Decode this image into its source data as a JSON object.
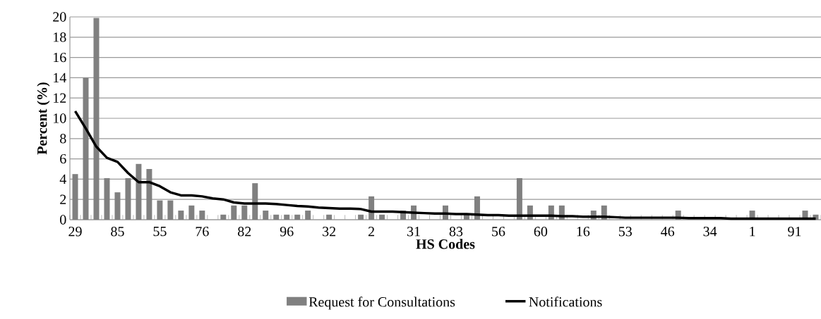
{
  "chart_data": {
    "type": "bar",
    "xlabel": "HS Codes",
    "ylabel": "Percent (%)",
    "categories": [
      "29",
      null,
      null,
      null,
      "85",
      null,
      null,
      null,
      "55",
      null,
      null,
      null,
      "76",
      null,
      null,
      null,
      "82",
      null,
      null,
      null,
      "96",
      null,
      null,
      null,
      "32",
      null,
      null,
      null,
      "2",
      null,
      null,
      null,
      "31",
      null,
      null,
      null,
      "83",
      null,
      null,
      null,
      "56",
      null,
      null,
      null,
      "60",
      null,
      null,
      null,
      "16",
      null,
      null,
      null,
      "53",
      null,
      null,
      null,
      "46",
      null,
      null,
      null,
      "34",
      null,
      null,
      null,
      "1",
      null,
      null,
      null,
      "91",
      null,
      null
    ],
    "series": [
      {
        "name": "Request for Consultations",
        "color": "#808080",
        "values": [
          4.5,
          14.0,
          19.9,
          4.1,
          2.7,
          4.1,
          5.5,
          5.0,
          1.9,
          1.9,
          0.9,
          1.4,
          0.9,
          0,
          0.5,
          1.4,
          1.4,
          3.6,
          0.9,
          0.5,
          0.5,
          0.5,
          0.9,
          0,
          0.5,
          0,
          0,
          0.5,
          2.3,
          0.5,
          0,
          0.9,
          1.4,
          0,
          0,
          1.4,
          0,
          0.5,
          2.3,
          0,
          0,
          0,
          4.1,
          1.4,
          0,
          1.4,
          1.4,
          0,
          0,
          0.9,
          1.4,
          0,
          0,
          0,
          0,
          0,
          0,
          0.9,
          0,
          0,
          0,
          0,
          0,
          0,
          0.9,
          0,
          0,
          0,
          0,
          0.9,
          0.5
        ]
      },
      {
        "name": "Notifications",
        "type": "line",
        "color": "#000000",
        "values": [
          10.7,
          9.0,
          7.2,
          6.1,
          5.7,
          4.6,
          3.7,
          3.7,
          3.3,
          2.7,
          2.4,
          2.4,
          2.3,
          2.1,
          2.0,
          1.7,
          1.6,
          1.6,
          1.6,
          1.55,
          1.45,
          1.35,
          1.3,
          1.2,
          1.15,
          1.1,
          1.1,
          1.05,
          0.8,
          0.8,
          0.8,
          0.75,
          0.7,
          0.65,
          0.6,
          0.6,
          0.55,
          0.55,
          0.5,
          0.45,
          0.45,
          0.4,
          0.4,
          0.4,
          0.4,
          0.4,
          0.35,
          0.35,
          0.3,
          0.3,
          0.3,
          0.25,
          0.2,
          0.2,
          0.2,
          0.2,
          0.2,
          0.2,
          0.15,
          0.15,
          0.15,
          0.15,
          0.1,
          0.1,
          0.1,
          0.1,
          0.1,
          0.1,
          0.1,
          0.1,
          0.1
        ]
      }
    ],
    "ylim": [
      0,
      20
    ],
    "yticks": [
      0,
      2,
      4,
      6,
      8,
      10,
      12,
      14,
      16,
      18,
      20
    ],
    "grid": "y",
    "legend": "bottom"
  }
}
